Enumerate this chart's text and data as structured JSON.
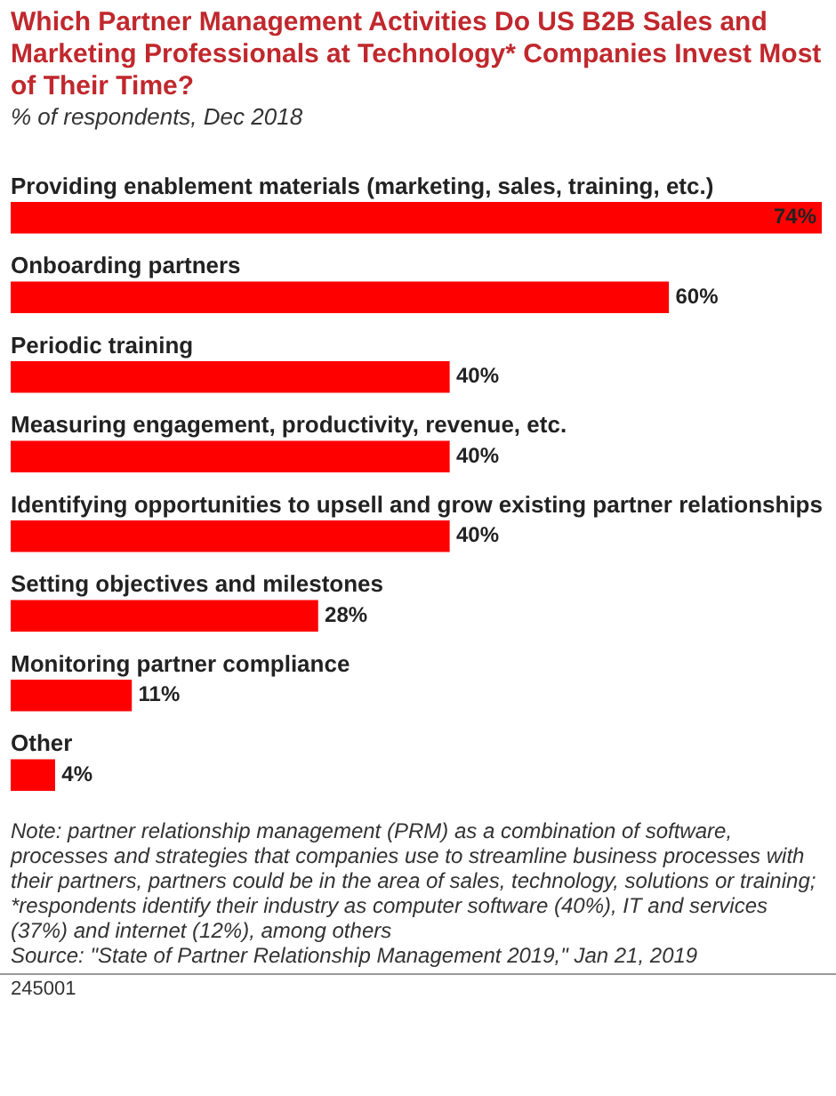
{
  "chart_data": {
    "type": "bar",
    "orientation": "horizontal",
    "title": "Which Partner Management Activities Do US B2B Sales and Marketing Professionals at Technology* Companies Invest Most of Their Time?",
    "subtitle": "% of respondents, Dec 2018",
    "categories": [
      "Providing enablement materials (marketing, sales, training, etc.)",
      "Onboarding partners",
      "Periodic training",
      "Measuring engagement, productivity, revenue, etc.",
      "Identifying opportunities to upsell and grow existing partner relationships",
      "Setting objectives and milestones",
      "Monitoring partner compliance",
      "Other"
    ],
    "values": [
      74,
      60,
      40,
      40,
      40,
      28,
      11,
      4
    ],
    "value_labels": [
      "74%",
      "60%",
      "40%",
      "40%",
      "40%",
      "28%",
      "11%",
      "4%"
    ],
    "color": "#ff0000",
    "annotations": [
      "Note: partner relationship management (PRM) as a combination of software, processes and strategies that companies use to streamline business processes with their partners, partners could be in the area of sales, technology, solutions or training; *respondents identify their industry as computer software (40%), IT and services (37%) and internet (12%), among others",
      "Source: \"State of Partner Relationship Management 2019,\" Jan 21, 2019",
      "245001"
    ]
  }
}
